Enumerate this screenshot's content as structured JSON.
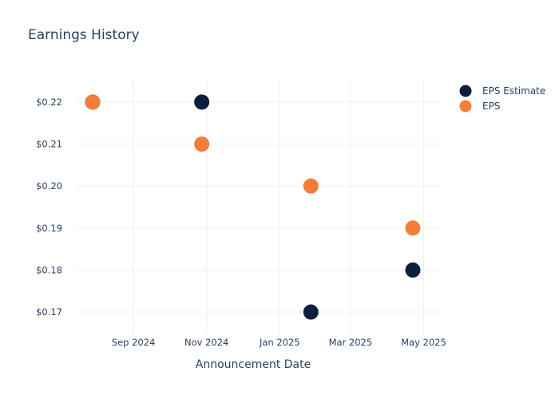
{
  "chart_data": {
    "type": "scatter",
    "title": "Earnings History",
    "xlabel": "Announcement Date",
    "ylabel": "",
    "x_type": "date",
    "xlim": [
      "2024-07-15",
      "2025-05-16"
    ],
    "ylim": [
      0.1645,
      0.2253
    ],
    "x_ticks": [
      {
        "date": "2024-09-01",
        "label": "Sep 2024"
      },
      {
        "date": "2024-11-01",
        "label": "Nov 2024"
      },
      {
        "date": "2025-01-01",
        "label": "Jan 2025"
      },
      {
        "date": "2025-03-01",
        "label": "Mar 2025"
      },
      {
        "date": "2025-05-01",
        "label": "May 2025"
      }
    ],
    "y_ticks": [
      {
        "value": 0.17,
        "label": "$0.17"
      },
      {
        "value": 0.18,
        "label": "$0.18"
      },
      {
        "value": 0.19,
        "label": "$0.19"
      },
      {
        "value": 0.2,
        "label": "$0.20"
      },
      {
        "value": 0.21,
        "label": "$0.21"
      },
      {
        "value": 0.22,
        "label": "$0.22"
      }
    ],
    "grid": true,
    "legend_position": "top-right",
    "series": [
      {
        "name": "EPS Estimate",
        "color": "#0d1f3c",
        "x": [
          "2024-07-29",
          "2024-10-28",
          "2025-01-27",
          "2025-04-22"
        ],
        "y": [
          0.22,
          0.22,
          0.17,
          0.18
        ]
      },
      {
        "name": "EPS",
        "color": "#f47d37",
        "x": [
          "2024-07-29",
          "2024-10-28",
          "2025-01-27",
          "2025-04-22"
        ],
        "y": [
          0.22,
          0.21,
          0.2,
          0.19
        ]
      }
    ]
  }
}
